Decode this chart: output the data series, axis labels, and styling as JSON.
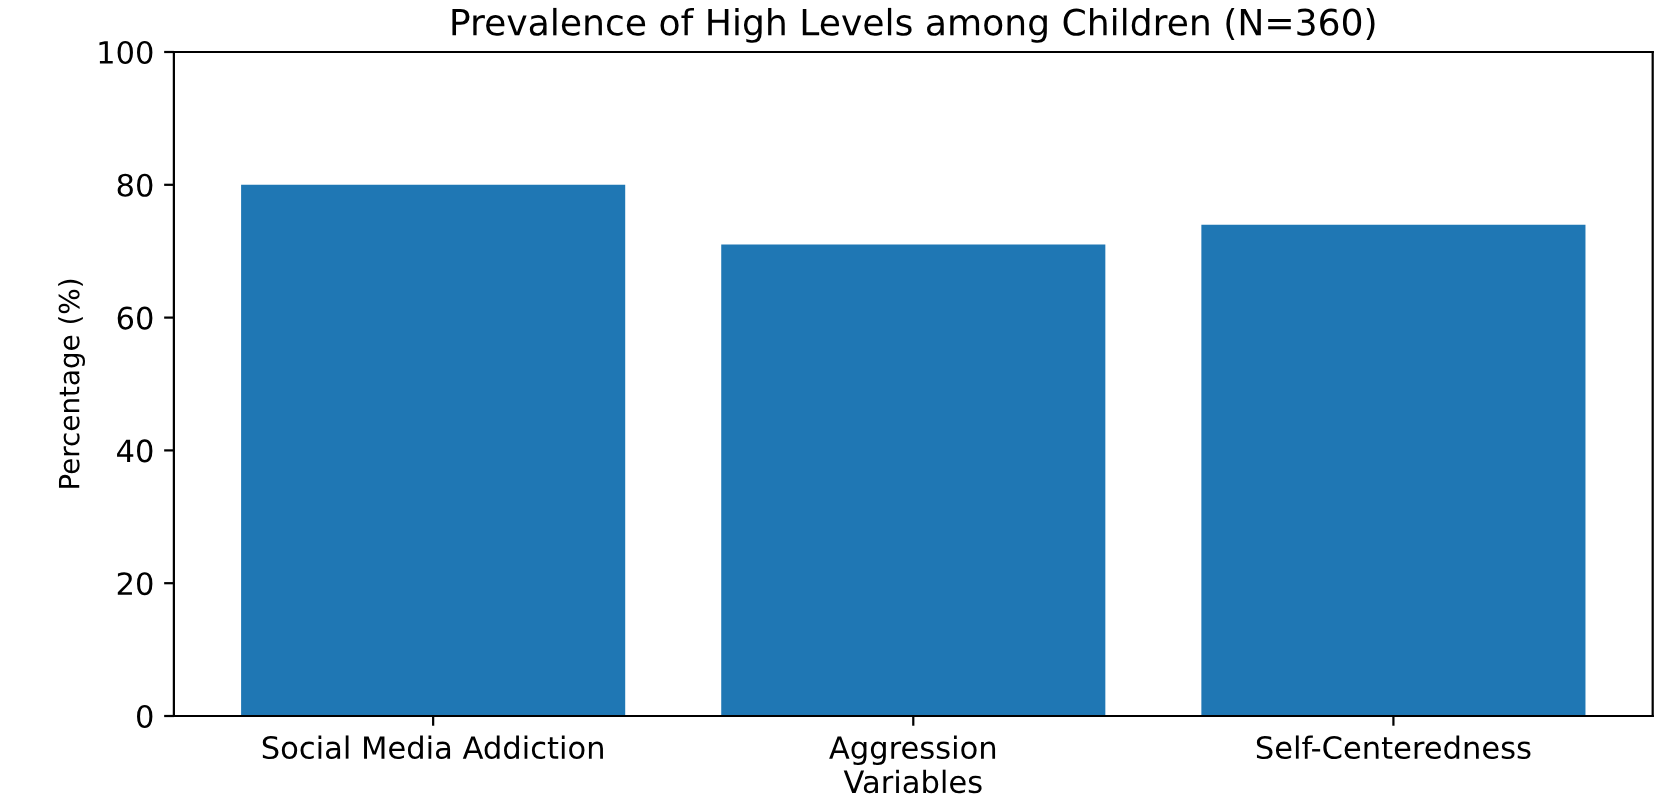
{
  "chart_data": {
    "type": "bar",
    "title": "Prevalence of High Levels among Children (N=360)",
    "ylabel": "Percentage (%)",
    "categories": [
      "Social Media Addiction",
      "Aggression\nVariables",
      "Self-Centeredness"
    ],
    "values": [
      80,
      71,
      74
    ],
    "color": "#1f77b4",
    "ylim": [
      0,
      100
    ],
    "yticks": [
      0,
      20,
      40,
      60,
      80,
      100
    ],
    "grid": false
  }
}
